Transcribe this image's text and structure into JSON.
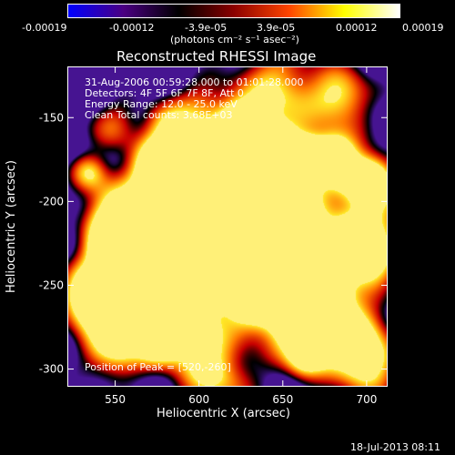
{
  "colorbar": {
    "tick_labels": [
      "-0.00019",
      "-0.00012",
      "-3.9e-05",
      "3.9e-05",
      "0.00012",
      "0.00019"
    ],
    "unit_label": "(photons cm⁻² s⁻¹ asec⁻²)",
    "colors": [
      "#0000ff",
      "#4b0082",
      "#000000",
      "#8b0000",
      "#ff4500",
      "#ffff00",
      "#ffffff"
    ]
  },
  "chart_data": {
    "type": "heatmap",
    "title": "Reconstructed RHESSI Image",
    "xlabel": "Heliocentric X (arcsec)",
    "ylabel": "Heliocentric Y (arcsec)",
    "xlim": [
      522,
      712
    ],
    "ylim": [
      -310,
      -120
    ],
    "xticks": [
      550,
      600,
      650,
      700
    ],
    "yticks": [
      -150,
      -200,
      -250,
      -300
    ],
    "info": [
      "31-Aug-2006 00:59:28.000 to 01:01:28.000",
      "Detectors: 4F 5F 6F 7F 8F, Att 0",
      "Energy Range: 12.0 - 25.0 keV",
      "Clean     Total counts: 3.68E+03"
    ],
    "peak_label": "Position of Peak = [520,-260]"
  },
  "footer": {
    "timestamp": "18-Jul-2013 08:11"
  }
}
